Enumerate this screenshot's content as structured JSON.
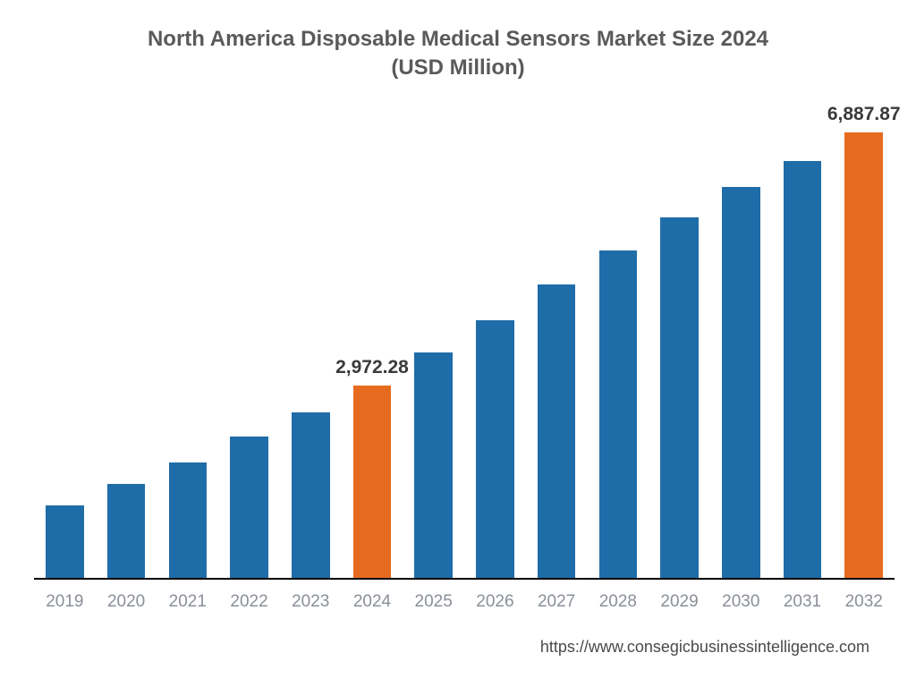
{
  "chart": {
    "type": "bar",
    "title_line1": "North America Disposable Medical Sensors Market Size 2024",
    "title_line2": "(USD Million)",
    "title_fontsize": 24,
    "title_color": "#5a5a5a",
    "categories": [
      "2019",
      "2020",
      "2021",
      "2022",
      "2023",
      "2024",
      "2025",
      "2026",
      "2027",
      "2028",
      "2029",
      "2030",
      "2031",
      "2032"
    ],
    "values": [
      1120,
      1450,
      1780,
      2180,
      2560,
      2972.28,
      3480,
      3980,
      4540,
      5060,
      5570,
      6050,
      6450,
      6887.87
    ],
    "bar_colors": [
      "#1f6da8",
      "#1f6da8",
      "#1f6da8",
      "#1f6da8",
      "#1f6da8",
      "#e66b1f",
      "#1f6da8",
      "#1f6da8",
      "#1f6da8",
      "#1f6da8",
      "#1f6da8",
      "#1f6da8",
      "#1f6da8",
      "#e66b1f"
    ],
    "value_labels": {
      "5": "2,972.28",
      "13": "6,887.87"
    },
    "value_label_fontsize": 21,
    "value_label_color": "#3a3a3a",
    "ymax": 7000,
    "ymin": 0,
    "bar_width_ratio": 0.62,
    "background_color": "#ffffff",
    "baseline_color": "#000000",
    "xlabel_color": "#8a8f98",
    "xlabel_fontsize": 19,
    "source_text": "https://www.consegicbusinessintelligence.com",
    "source_fontsize": 18,
    "source_color": "#4a4a4a"
  }
}
